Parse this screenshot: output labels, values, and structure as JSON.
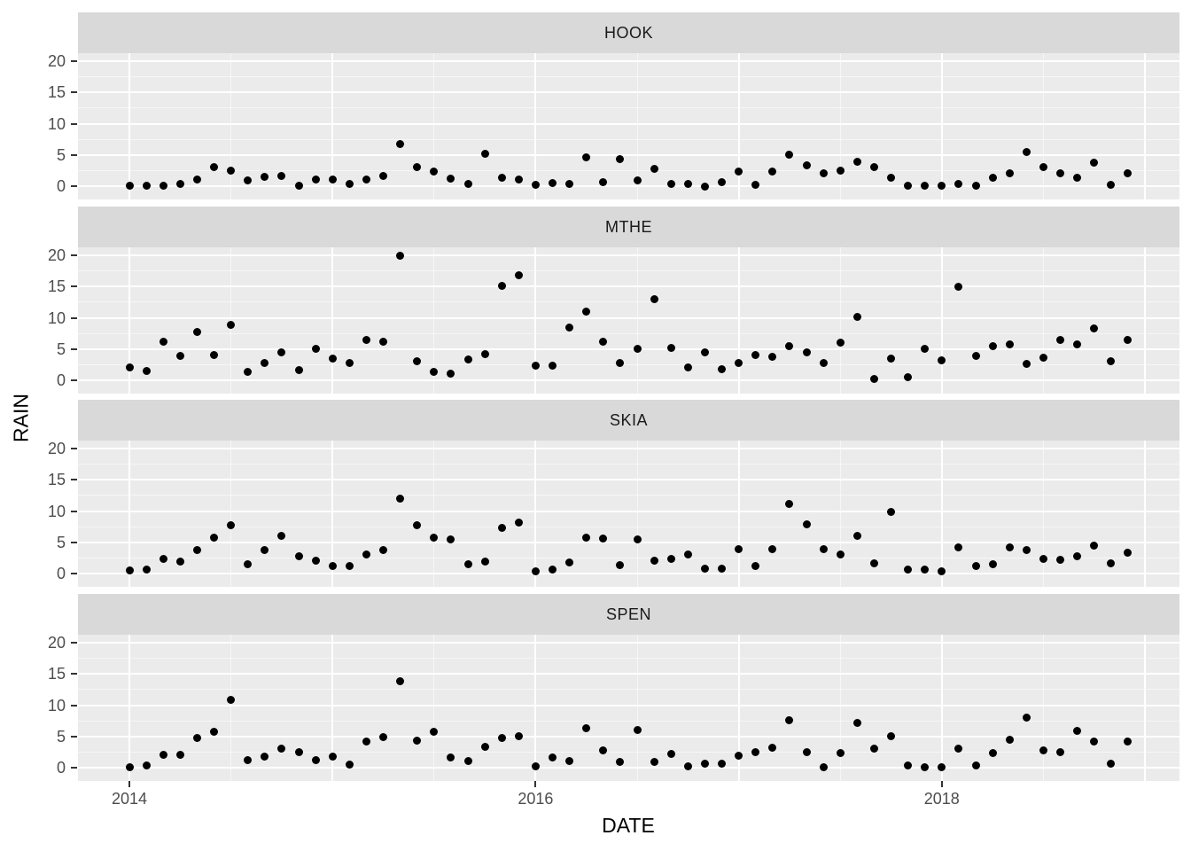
{
  "axes": {
    "x_title": "DATE",
    "y_title": "RAIN",
    "x_tick_labels": [
      "2014",
      "2016",
      "2018"
    ],
    "x_tick_years": [
      2014,
      2016,
      2018
    ],
    "y_tick_labels": [
      "20",
      "15",
      "10",
      "5",
      "0"
    ],
    "y_tick_values": [
      20,
      15,
      10,
      5,
      0
    ]
  },
  "style": {
    "panel_bg": "#EBEBEB",
    "strip_bg": "#D9D9D9",
    "grid_color": "#FFFFFF",
    "point_color": "#000000",
    "tick_label_color": "#4D4D4D",
    "strip_text_color": "#1A1A1A",
    "axis_title_color": "#000000"
  },
  "chart_data": {
    "type": "scatter",
    "title": "",
    "xlabel": "DATE",
    "ylabel": "RAIN",
    "facet_layout": "rows",
    "grid": "major and minor white gridlines on grey panel",
    "legend_position": "none",
    "x_axis": {
      "tick_labels": [
        "2014",
        "2016",
        "2018"
      ],
      "minor_ticks": "mid-year",
      "start": "2014-01",
      "end": "2018-12"
    },
    "y_axis": {
      "ticks": [
        0,
        5,
        10,
        15,
        20
      ],
      "range": [
        -2.1,
        21.4
      ]
    },
    "x": [
      "2014-01",
      "2014-02",
      "2014-03",
      "2014-04",
      "2014-05",
      "2014-06",
      "2014-07",
      "2014-08",
      "2014-09",
      "2014-10",
      "2014-11",
      "2014-12",
      "2015-01",
      "2015-02",
      "2015-03",
      "2015-04",
      "2015-05",
      "2015-06",
      "2015-07",
      "2015-08",
      "2015-09",
      "2015-10",
      "2015-11",
      "2015-12",
      "2016-01",
      "2016-02",
      "2016-03",
      "2016-04",
      "2016-05",
      "2016-06",
      "2016-07",
      "2016-08",
      "2016-09",
      "2016-10",
      "2016-11",
      "2016-12",
      "2017-01",
      "2017-02",
      "2017-03",
      "2017-04",
      "2017-05",
      "2017-06",
      "2017-07",
      "2017-08",
      "2017-09",
      "2017-10",
      "2017-11",
      "2017-12",
      "2018-01",
      "2018-02",
      "2018-03",
      "2018-04",
      "2018-05",
      "2018-06",
      "2018-07",
      "2018-08",
      "2018-09",
      "2018-10",
      "2018-11",
      "2018-12"
    ],
    "series": [
      {
        "name": "HOOK",
        "values": [
          0.1,
          0.1,
          0.1,
          0.3,
          1.1,
          3.0,
          2.5,
          0.9,
          1.5,
          1.7,
          0.1,
          1.0,
          1.1,
          0.3,
          1.0,
          1.7,
          6.8,
          3.1,
          2.3,
          1.2,
          0.4,
          5.2,
          1.3,
          1.1,
          0.2,
          0.5,
          0.3,
          4.6,
          0.7,
          4.3,
          0.9,
          2.8,
          0.3,
          0.3,
          0.0,
          0.7,
          2.3,
          0.2,
          2.3,
          5.0,
          3.4,
          2.0,
          2.5,
          3.9,
          3.0,
          1.4,
          0.1,
          0.1,
          0.1,
          0.3,
          0.1,
          1.4,
          2.1,
          5.4,
          3.0,
          2.0,
          1.4,
          3.8,
          0.2,
          2.1
        ]
      },
      {
        "name": "MTHE",
        "values": [
          2.0,
          1.5,
          6.2,
          3.9,
          7.8,
          4.1,
          8.9,
          1.3,
          2.8,
          4.5,
          1.7,
          5.1,
          3.5,
          2.7,
          6.4,
          6.2,
          19.9,
          3.1,
          1.4,
          1.1,
          3.3,
          4.2,
          15.1,
          16.8,
          2.3,
          2.4,
          8.4,
          11.0,
          6.1,
          2.8,
          5.1,
          13.0,
          5.2,
          2.0,
          4.5,
          1.8,
          2.8,
          4.0,
          3.7,
          5.5,
          4.4,
          2.8,
          6.0,
          10.2,
          0.2,
          3.5,
          0.5,
          5.0,
          3.2,
          15.0,
          3.9,
          5.4,
          5.8,
          2.6,
          3.6,
          6.4,
          5.8,
          8.3,
          3.0,
          6.4
        ]
      },
      {
        "name": "SKIA",
        "values": [
          0.5,
          0.6,
          2.4,
          1.9,
          3.8,
          5.8,
          7.8,
          1.5,
          3.8,
          6.0,
          2.7,
          2.0,
          1.2,
          1.2,
          3.1,
          3.8,
          12.0,
          7.8,
          5.8,
          5.5,
          1.5,
          1.9,
          7.3,
          8.1,
          0.4,
          0.6,
          1.8,
          5.8,
          5.6,
          1.3,
          5.5,
          2.0,
          2.3,
          3.1,
          0.8,
          0.8,
          3.9,
          1.2,
          3.9,
          11.2,
          7.9,
          3.9,
          3.0,
          6.0,
          1.7,
          9.8,
          0.6,
          0.7,
          0.3,
          4.2,
          1.2,
          1.5,
          4.2,
          3.8,
          2.3,
          2.2,
          2.7,
          4.5,
          1.7,
          3.4
        ]
      },
      {
        "name": "SPEN",
        "values": [
          0.1,
          0.3,
          2.0,
          2.1,
          4.8,
          5.7,
          10.9,
          1.2,
          1.8,
          3.0,
          2.5,
          1.2,
          1.8,
          0.5,
          4.2,
          4.9,
          13.8,
          4.3,
          5.7,
          1.6,
          1.1,
          3.3,
          4.8,
          5.0,
          0.2,
          1.6,
          1.0,
          6.3,
          2.8,
          0.9,
          6.0,
          0.9,
          2.2,
          0.2,
          0.6,
          0.6,
          1.9,
          2.5,
          3.2,
          7.6,
          2.5,
          0.1,
          2.3,
          7.1,
          3.0,
          5.1,
          0.3,
          0.1,
          0.1,
          3.0,
          0.3,
          2.4,
          4.5,
          8.0,
          2.8,
          2.5,
          5.9,
          4.2,
          0.6,
          4.2
        ]
      }
    ]
  }
}
